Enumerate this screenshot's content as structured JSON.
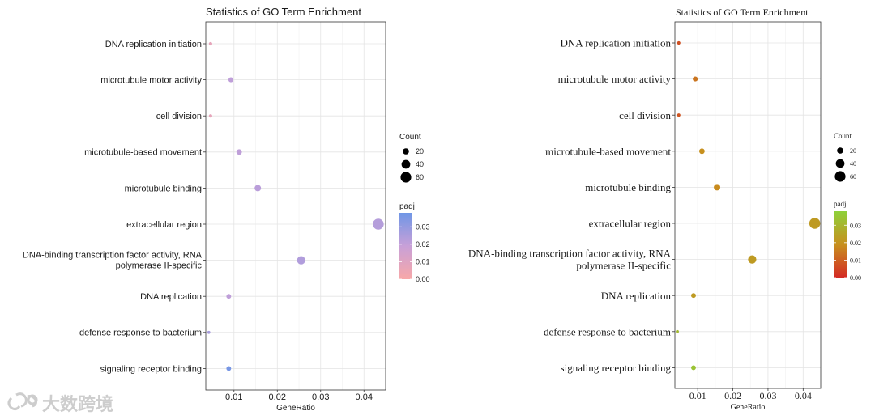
{
  "chart_data": [
    {
      "type": "scatter",
      "title": "Statistics of GO Term Enrichment",
      "xlabel": "GeneRatio",
      "ylabel": "",
      "xlim": [
        0.0035,
        0.045
      ],
      "xticks": [
        0.01,
        0.02,
        0.03,
        0.04
      ],
      "xtick_labels": [
        "0.01",
        "0.02",
        "0.03",
        "0.04"
      ],
      "grid": true,
      "palette": "pink-blue",
      "categories": [
        "DNA replication initiation",
        "microtubule motor activity",
        "cell division",
        "microtubule-based movement",
        "microtubule binding",
        "extracellular region",
        "DNA-binding transcription factor activity, RNA polymerase II-specific",
        "DNA replication",
        "defense response to bacterium",
        "signaling receptor binding"
      ],
      "points": [
        {
          "term": "DNA replication initiation",
          "x": 0.0046,
          "count": 6,
          "padj": 0.007
        },
        {
          "term": "microtubule motor activity",
          "x": 0.0093,
          "count": 13,
          "padj": 0.021
        },
        {
          "term": "cell division",
          "x": 0.0046,
          "count": 6,
          "padj": 0.007
        },
        {
          "term": "microtubule-based movement",
          "x": 0.0112,
          "count": 16,
          "padj": 0.021
        },
        {
          "term": "microtubule binding",
          "x": 0.0155,
          "count": 22,
          "padj": 0.022
        },
        {
          "term": "extracellular region",
          "x": 0.0433,
          "count": 63,
          "padj": 0.023
        },
        {
          "term": "DNA-binding transcription factor activity, RNA polymerase II-specific",
          "x": 0.0255,
          "count": 36,
          "padj": 0.024
        },
        {
          "term": "DNA replication",
          "x": 0.0088,
          "count": 12,
          "padj": 0.021
        },
        {
          "term": "defense response to bacterium",
          "x": 0.0042,
          "count": 5,
          "padj": 0.026
        },
        {
          "term": "signaling receptor binding",
          "x": 0.0088,
          "count": 12,
          "padj": 0.036
        }
      ],
      "legend_size": {
        "title": "Count",
        "values": [
          20,
          40,
          60
        ],
        "labels": [
          "20",
          "40",
          "60"
        ]
      },
      "legend_color": {
        "title": "padj",
        "min": 0,
        "max": 0.038,
        "ticks": [
          0.0,
          0.01,
          0.02,
          0.03
        ],
        "labels": [
          "0.00",
          "0.01",
          "0.02",
          "0.03"
        ],
        "low_color": "#f8a8a8",
        "mid_color": "#c8a0d8",
        "high_color": "#6f96e6"
      }
    },
    {
      "type": "scatter",
      "title": "Statistics of GO Term Enrichment",
      "xlabel": "GeneRatio",
      "ylabel": "",
      "xlim": [
        0.0035,
        0.045
      ],
      "xticks": [
        0.01,
        0.02,
        0.03,
        0.04
      ],
      "xtick_labels": [
        "0.01",
        "0.02",
        "0.03",
        "0.04"
      ],
      "grid": true,
      "palette": "red-green",
      "categories": [
        "DNA replication initiation",
        "microtubule motor activity",
        "cell division",
        "microtubule-based movement",
        "microtubule binding",
        "extracellular region",
        "DNA-binding transcription factor activity, RNA polymerase II-specific",
        "DNA replication",
        "defense response to bacterium",
        "signaling receptor binding"
      ],
      "points": [
        {
          "term": "DNA replication initiation",
          "x": 0.0046,
          "count": 6,
          "padj": 0.007
        },
        {
          "term": "microtubule motor activity",
          "x": 0.0093,
          "count": 13,
          "padj": 0.014
        },
        {
          "term": "cell division",
          "x": 0.0046,
          "count": 6,
          "padj": 0.008
        },
        {
          "term": "microtubule-based movement",
          "x": 0.0112,
          "count": 16,
          "padj": 0.019
        },
        {
          "term": "microtubule binding",
          "x": 0.0155,
          "count": 22,
          "padj": 0.018
        },
        {
          "term": "extracellular region",
          "x": 0.0433,
          "count": 63,
          "padj": 0.022
        },
        {
          "term": "DNA-binding transcription factor activity, RNA polymerase II-specific",
          "x": 0.0255,
          "count": 36,
          "padj": 0.022
        },
        {
          "term": "DNA replication",
          "x": 0.0088,
          "count": 12,
          "padj": 0.022
        },
        {
          "term": "defense response to bacterium",
          "x": 0.0042,
          "count": 5,
          "padj": 0.031
        },
        {
          "term": "signaling receptor binding",
          "x": 0.0088,
          "count": 12,
          "padj": 0.034
        }
      ],
      "legend_size": {
        "title": "Count",
        "values": [
          20,
          40,
          60
        ],
        "labels": [
          "20",
          "40",
          "60"
        ]
      },
      "legend_color": {
        "title": "padj",
        "min": 0,
        "max": 0.038,
        "ticks": [
          0.0,
          0.01,
          0.02,
          0.03
        ],
        "labels": [
          "0.00",
          "0.01",
          "0.02",
          "0.03"
        ],
        "low_color": "#d42a24",
        "mid_color": "#c7901e",
        "high_color": "#8ed13a"
      }
    }
  ],
  "watermark": {
    "text": "大数跨境",
    "color": "#c8c8c8"
  }
}
